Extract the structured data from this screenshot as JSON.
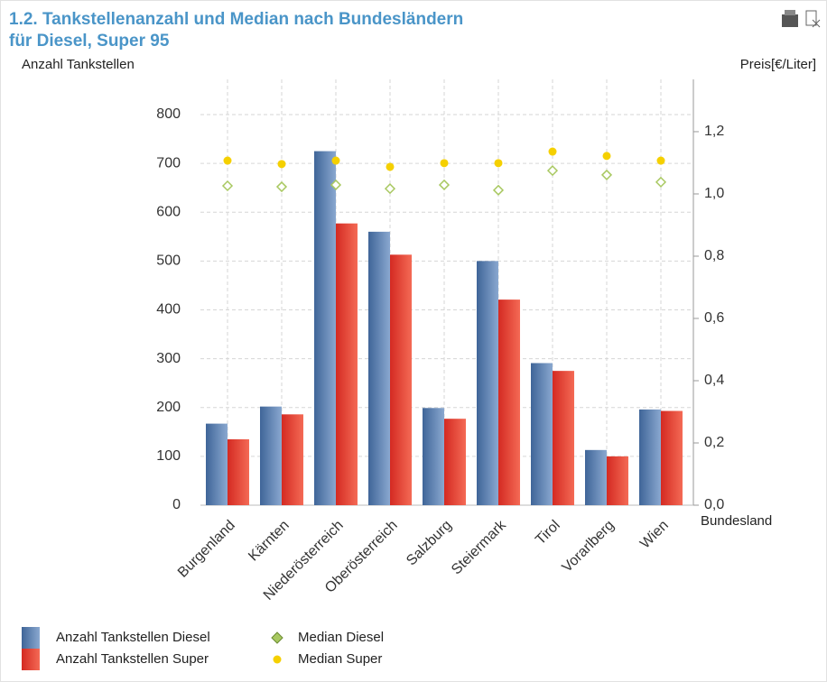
{
  "chart_data": {
    "type": "bar",
    "title": [
      "1.2. Tankstellenanzahl und Median nach Bundesländern",
      "für Diesel, Super 95"
    ],
    "ylabel": "Anzahl Tankstellen",
    "y2label": "Preis[€/Liter]",
    "xlabel": "Bundesland",
    "categories": [
      "Burgenland",
      "Kärnten",
      "Niederösterreich",
      "Oberösterreich",
      "Salzburg",
      "Steiermark",
      "Tirol",
      "Vorarlberg",
      "Wien"
    ],
    "series": [
      {
        "name": "Anzahl Tankstellen Diesel",
        "color": "#5b80b2",
        "values": [
          167,
          202,
          725,
          560,
          199,
          500,
          291,
          113,
          196
        ]
      },
      {
        "name": "Anzahl Tankstellen Super",
        "color": "#e8413a",
        "values": [
          135,
          186,
          577,
          513,
          177,
          421,
          275,
          100,
          193
        ]
      },
      {
        "name": "Median Diesel",
        "color": "#a8c860",
        "marker": "diamond",
        "axis": "y2",
        "values": [
          1.026,
          1.023,
          1.029,
          1.017,
          1.029,
          1.012,
          1.075,
          1.061,
          1.038
        ]
      },
      {
        "name": "Median Super",
        "color": "#f5d000",
        "marker": "circle",
        "axis": "y2",
        "values": [
          1.107,
          1.096,
          1.107,
          1.087,
          1.099,
          1.099,
          1.136,
          1.122,
          1.107
        ]
      }
    ],
    "ylim": [
      0,
      872
    ],
    "yticks": [
      0,
      100,
      200,
      300,
      400,
      500,
      600,
      700,
      800
    ],
    "y2lim": [
      0,
      1.368
    ],
    "y2ticks": [
      {
        "value": 0,
        "label": "0,0"
      },
      {
        "value": 0.2,
        "label": "0,2"
      },
      {
        "value": 0.4,
        "label": "0,4"
      },
      {
        "value": 0.6,
        "label": "0,6"
      },
      {
        "value": 0.8,
        "label": "0,8"
      },
      {
        "value": 1.0,
        "label": "1,0"
      },
      {
        "value": 1.2,
        "label": "1,2"
      }
    ],
    "grid": true
  }
}
